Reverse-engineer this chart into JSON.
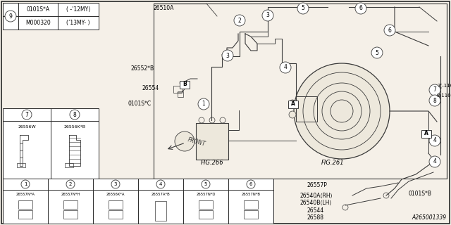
{
  "bg_color": "#f5f0e8",
  "line_color": "#3a3a3a",
  "border_color": "#2a2a2a",
  "diagram_number": "A265001339",
  "ref_table": {
    "part1": "0101S*A",
    "desc1": "( -’12MY)",
    "part2": "M000320",
    "desc2": "(’13MY- )",
    "circle_num": "9"
  },
  "legend_78": {
    "headers": [
      "7",
      "8"
    ],
    "parts": [
      "26556W",
      "26556K*B"
    ]
  },
  "legend_16": {
    "headers": [
      "1",
      "2",
      "3",
      "4",
      "5",
      "6"
    ],
    "parts": [
      "26557N*A",
      "26557N*H",
      "26556K*A",
      "26557A*B",
      "26557N*D",
      "26557N*B"
    ]
  }
}
